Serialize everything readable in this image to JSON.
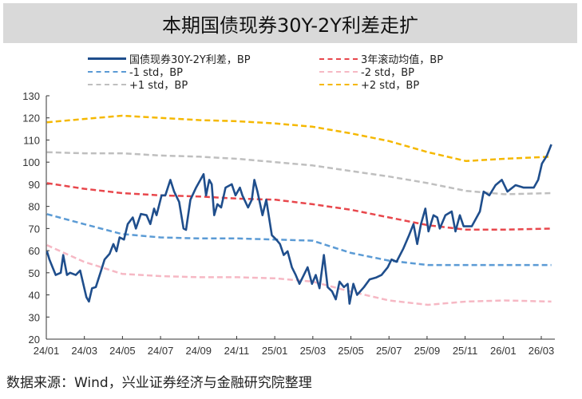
{
  "chart_data": {
    "type": "line",
    "title": "本期国债现券30Y-2Y利差走扩",
    "xlabel": "",
    "ylabel": "",
    "ylim": [
      20,
      130
    ],
    "yticks": [
      "20",
      "30",
      "40",
      "50",
      "60",
      "70",
      "80",
      "90",
      "100",
      "110",
      "120",
      "130"
    ],
    "xlim": [
      "2024-01-01",
      "2026-03-25"
    ],
    "xticks": [
      "24/01",
      "24/03",
      "24/05",
      "24/07",
      "24/09",
      "24/11",
      "25/01",
      "25/03",
      "25/05",
      "25/07",
      "25/09",
      "25/11",
      "26/01",
      "26/03"
    ],
    "grid": false,
    "legend_position": "top",
    "series": [
      {
        "name": "国债现券30Y-2Y利差，BP",
        "color": "#1f4e8c",
        "style": "solid",
        "points": [
          [
            "2024-01-02",
            59.7
          ],
          [
            "2024-01-06",
            56
          ],
          [
            "2024-01-11",
            52.5
          ],
          [
            "2024-01-16",
            49
          ],
          [
            "2024-01-24",
            50
          ],
          [
            "2024-01-28",
            58
          ],
          [
            "2024-02-03",
            49
          ],
          [
            "2024-02-08",
            50
          ],
          [
            "2024-02-17",
            49
          ],
          [
            "2024-02-24",
            51
          ],
          [
            "2024-02-29",
            45
          ],
          [
            "2024-03-05",
            39
          ],
          [
            "2024-03-09",
            37
          ],
          [
            "2024-03-14",
            43
          ],
          [
            "2024-03-20",
            43.5
          ],
          [
            "2024-03-28",
            50.6
          ],
          [
            "2024-04-03",
            56
          ],
          [
            "2024-04-11",
            58.6
          ],
          [
            "2024-04-17",
            63
          ],
          [
            "2024-04-22",
            59.7
          ],
          [
            "2024-04-27",
            66
          ],
          [
            "2024-05-04",
            65
          ],
          [
            "2024-05-10",
            72
          ],
          [
            "2024-05-18",
            75
          ],
          [
            "2024-05-23",
            70
          ],
          [
            "2024-05-31",
            76.6
          ],
          [
            "2024-06-09",
            76
          ],
          [
            "2024-06-15",
            72
          ],
          [
            "2024-06-21",
            79
          ],
          [
            "2024-06-25",
            76
          ],
          [
            "2024-07-03",
            85
          ],
          [
            "2024-07-09",
            85
          ],
          [
            "2024-07-17",
            92
          ],
          [
            "2024-07-23",
            86.7
          ],
          [
            "2024-07-31",
            82
          ],
          [
            "2024-08-07",
            70
          ],
          [
            "2024-08-11",
            69.4
          ],
          [
            "2024-08-18",
            83
          ],
          [
            "2024-08-27",
            88.5
          ],
          [
            "2024-09-08",
            94.6
          ],
          [
            "2024-09-12",
            85
          ],
          [
            "2024-09-17",
            92
          ],
          [
            "2024-09-21",
            90
          ],
          [
            "2024-09-25",
            76
          ],
          [
            "2024-09-30",
            81
          ],
          [
            "2024-10-06",
            79.5
          ],
          [
            "2024-10-13",
            88.5
          ],
          [
            "2024-10-23",
            90
          ],
          [
            "2024-10-29",
            85
          ],
          [
            "2024-11-05",
            88.5
          ],
          [
            "2024-11-09",
            85
          ],
          [
            "2024-11-18",
            79.5
          ],
          [
            "2024-11-24",
            83
          ],
          [
            "2024-11-28",
            92
          ],
          [
            "2024-12-03",
            86.7
          ],
          [
            "2024-12-11",
            76
          ],
          [
            "2024-12-17",
            83
          ],
          [
            "2024-12-26",
            67
          ],
          [
            "2025-01-02",
            65
          ],
          [
            "2025-01-08",
            63
          ],
          [
            "2025-01-14",
            58
          ],
          [
            "2025-01-20",
            59.7
          ],
          [
            "2025-01-27",
            52.5
          ],
          [
            "2025-02-02",
            49
          ],
          [
            "2025-02-08",
            45
          ],
          [
            "2025-02-15",
            49
          ],
          [
            "2025-02-21",
            52.5
          ],
          [
            "2025-02-28",
            45
          ],
          [
            "2025-03-06",
            49
          ],
          [
            "2025-03-12",
            43
          ],
          [
            "2025-03-19",
            58
          ],
          [
            "2025-03-25",
            43.5
          ],
          [
            "2025-04-01",
            41.6
          ],
          [
            "2025-04-07",
            38
          ],
          [
            "2025-04-13",
            46
          ],
          [
            "2025-04-20",
            43.5
          ],
          [
            "2025-04-26",
            45
          ],
          [
            "2025-04-29",
            36
          ],
          [
            "2025-05-05",
            45
          ],
          [
            "2025-05-11",
            40
          ],
          [
            "2025-05-22",
            43.5
          ],
          [
            "2025-05-31",
            47
          ],
          [
            "2025-06-10",
            47.8
          ],
          [
            "2025-06-19",
            49
          ],
          [
            "2025-06-29",
            52.5
          ],
          [
            "2025-07-05",
            56
          ],
          [
            "2025-07-13",
            55
          ],
          [
            "2025-07-24",
            61
          ],
          [
            "2025-08-02",
            67
          ],
          [
            "2025-08-09",
            72
          ],
          [
            "2025-08-15",
            63
          ],
          [
            "2025-08-21",
            72
          ],
          [
            "2025-08-28",
            79
          ],
          [
            "2025-09-02",
            68.7
          ],
          [
            "2025-09-10",
            76
          ],
          [
            "2025-09-16",
            75
          ],
          [
            "2025-09-20",
            70
          ],
          [
            "2025-09-29",
            76
          ],
          [
            "2025-10-09",
            77.7
          ],
          [
            "2025-10-15",
            68.7
          ],
          [
            "2025-10-22",
            76
          ],
          [
            "2025-10-28",
            71
          ],
          [
            "2025-11-10",
            71
          ],
          [
            "2025-11-23",
            77.7
          ],
          [
            "2025-11-29",
            86.7
          ],
          [
            "2025-12-08",
            85
          ],
          [
            "2025-12-18",
            89.6
          ],
          [
            "2025-12-28",
            92
          ],
          [
            "2026-01-06",
            86.7
          ],
          [
            "2026-01-19",
            89.6
          ],
          [
            "2026-02-01",
            88.5
          ],
          [
            "2026-02-17",
            88.5
          ],
          [
            "2026-02-24",
            92
          ],
          [
            "2026-03-02",
            99.3
          ],
          [
            "2026-03-10",
            103
          ],
          [
            "2026-03-17",
            108
          ]
        ]
      },
      {
        "name": "3年滚动均值，BP",
        "color": "#e8474c",
        "style": "dashed",
        "points": [
          [
            "2024-01-02",
            90.5
          ],
          [
            "2024-03-01",
            88
          ],
          [
            "2024-05-01",
            86
          ],
          [
            "2024-07-01",
            85
          ],
          [
            "2024-09-01",
            84.5
          ],
          [
            "2024-11-01",
            83.5
          ],
          [
            "2025-01-01",
            83
          ],
          [
            "2025-03-01",
            81
          ],
          [
            "2025-05-01",
            78.5
          ],
          [
            "2025-07-01",
            75
          ],
          [
            "2025-09-01",
            71.5
          ],
          [
            "2025-11-01",
            69.5
          ],
          [
            "2026-01-01",
            69.5
          ],
          [
            "2026-03-17",
            70
          ]
        ]
      },
      {
        "name": "-1 std，BP",
        "color": "#5b9bd5",
        "style": "dashed",
        "points": [
          [
            "2024-01-02",
            76.5
          ],
          [
            "2024-03-01",
            72
          ],
          [
            "2024-05-01",
            67.5
          ],
          [
            "2024-07-01",
            66
          ],
          [
            "2024-09-01",
            65.5
          ],
          [
            "2024-11-01",
            65.5
          ],
          [
            "2025-01-01",
            65
          ],
          [
            "2025-03-01",
            64.5
          ],
          [
            "2025-05-01",
            59
          ],
          [
            "2025-07-01",
            55.5
          ],
          [
            "2025-09-01",
            53.5
          ],
          [
            "2025-11-01",
            53.5
          ],
          [
            "2026-01-01",
            53.5
          ],
          [
            "2026-03-17",
            53.5
          ]
        ]
      },
      {
        "name": "-2 std，BP",
        "color": "#f6b8c4",
        "style": "dashed",
        "points": [
          [
            "2024-01-02",
            62.5
          ],
          [
            "2024-03-01",
            55
          ],
          [
            "2024-05-01",
            49.5
          ],
          [
            "2024-07-01",
            48.5
          ],
          [
            "2024-09-01",
            48
          ],
          [
            "2024-11-01",
            48
          ],
          [
            "2025-01-01",
            47.5
          ],
          [
            "2025-03-01",
            46
          ],
          [
            "2025-05-01",
            41.5
          ],
          [
            "2025-07-01",
            37.5
          ],
          [
            "2025-09-01",
            35.5
          ],
          [
            "2025-11-01",
            37
          ],
          [
            "2026-01-01",
            37.5
          ],
          [
            "2026-03-17",
            37
          ]
        ]
      },
      {
        "name": "+1 std，BP",
        "color": "#bfbfbf",
        "style": "dashed",
        "points": [
          [
            "2024-01-02",
            104.5
          ],
          [
            "2024-03-01",
            104
          ],
          [
            "2024-05-01",
            104
          ],
          [
            "2024-07-01",
            103
          ],
          [
            "2024-09-01",
            102.5
          ],
          [
            "2024-11-01",
            101.5
          ],
          [
            "2025-01-01",
            100
          ],
          [
            "2025-03-01",
            98.5
          ],
          [
            "2025-05-01",
            96
          ],
          [
            "2025-07-01",
            93.5
          ],
          [
            "2025-09-01",
            90.5
          ],
          [
            "2025-11-01",
            87
          ],
          [
            "2026-01-01",
            85.5
          ],
          [
            "2026-03-17",
            86
          ]
        ]
      },
      {
        "name": "+2 std，BP",
        "color": "#f5b800",
        "style": "dashed",
        "points": [
          [
            "2024-01-02",
            118
          ],
          [
            "2024-03-01",
            119.5
          ],
          [
            "2024-05-01",
            121
          ],
          [
            "2024-07-01",
            120
          ],
          [
            "2024-09-01",
            119
          ],
          [
            "2024-11-01",
            118.5
          ],
          [
            "2025-01-01",
            117.5
          ],
          [
            "2025-03-01",
            116
          ],
          [
            "2025-05-01",
            113
          ],
          [
            "2025-07-01",
            109.5
          ],
          [
            "2025-09-01",
            104.5
          ],
          [
            "2025-11-01",
            100.5
          ],
          [
            "2026-01-01",
            101.5
          ],
          [
            "2026-03-17",
            102.5
          ]
        ]
      }
    ]
  },
  "source": "数据来源：Wind，兴业证券经济与金融研究院整理"
}
